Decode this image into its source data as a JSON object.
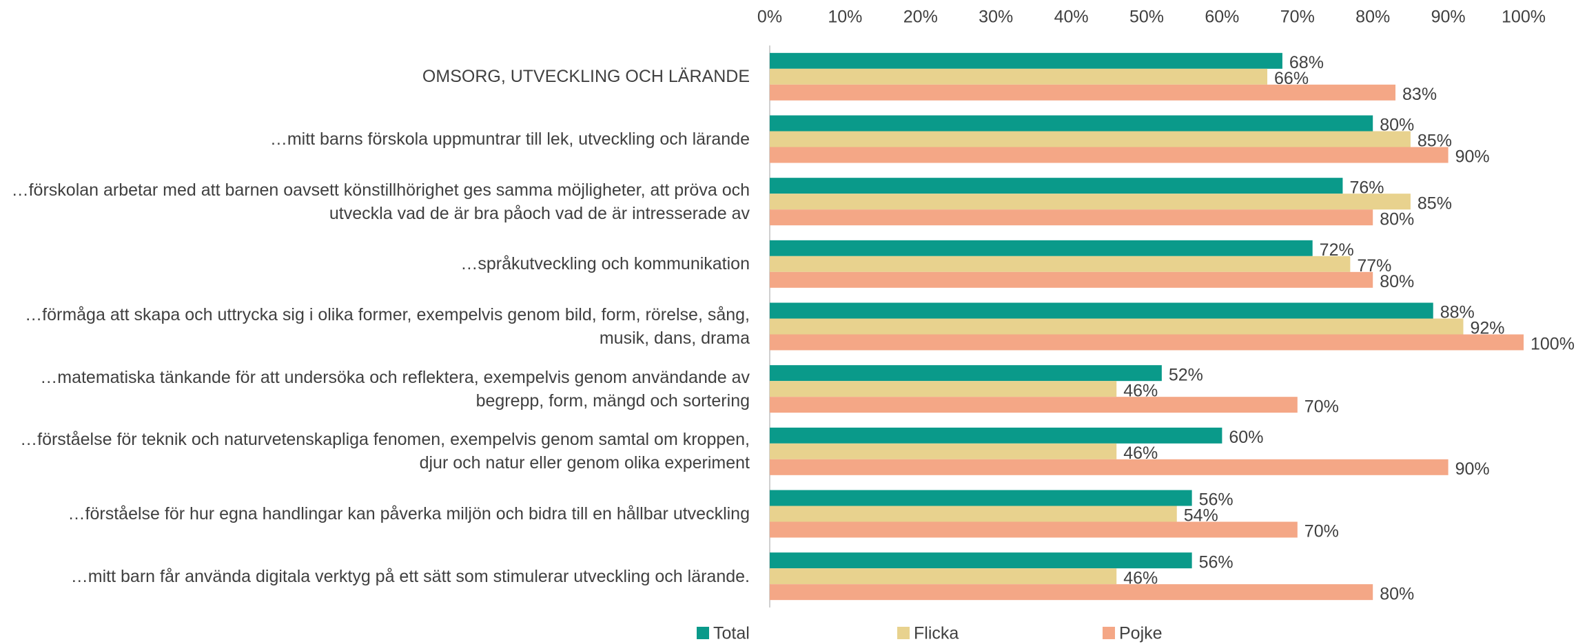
{
  "chart_data": {
    "type": "barh",
    "categories": [
      "OMSORG, UTVECKLING OCH LÄRANDE",
      "…mitt barns förskola uppmuntrar till lek, utveckling och lärande",
      "…förskolan arbetar med att barnen oavsett könstillhörighet ges samma möjligheter, att pröva och utveckla vad de är bra påoch vad de är intresserade av",
      "…språkutveckling och kommunikation",
      "…förmåga att skapa och uttrycka sig i olika former, exempelvis genom bild, form, rörelse, sång, musik, dans, drama",
      "…matematiska tänkande för att undersöka och reflektera, exempelvis genom användande av begrepp, form, mängd och sortering",
      "…förståelse för teknik och naturvetenskapliga fenomen, exempelvis genom samtal om kroppen, djur och natur eller genom olika experiment",
      "…förståelse för hur egna handlingar kan påverka miljön och bidra till en hållbar utveckling",
      "…mitt barn får använda digitala verktyg på ett sätt som stimulerar utveckling och lärande."
    ],
    "series": [
      {
        "name": "Total",
        "color": "#0a9a8a",
        "values": [
          68,
          80,
          76,
          72,
          88,
          52,
          60,
          56,
          56
        ],
        "value_labels": [
          "68%",
          "80%",
          "76%",
          "72%",
          "88%",
          "52%",
          "60%",
          "56%",
          "56%"
        ]
      },
      {
        "name": "Flicka",
        "color": "#e8d28e",
        "values": [
          66,
          85,
          85,
          77,
          92,
          46,
          46,
          54,
          46
        ],
        "value_labels": [
          "66%",
          "85%",
          "85%",
          "77%",
          "92%",
          "46%",
          "46%",
          "54%",
          "46%"
        ]
      },
      {
        "name": "Pojke",
        "color": "#f4a786",
        "values": [
          83,
          90,
          80,
          80,
          100,
          70,
          90,
          70,
          80
        ],
        "value_labels": [
          "83%",
          "90%",
          "80%",
          "80%",
          "100%",
          "70%",
          "90%",
          "70%",
          "80%"
        ]
      }
    ],
    "xlim": [
      0,
      100
    ],
    "xticks": [
      {
        "value": 0,
        "label": "0%"
      },
      {
        "value": 10,
        "label": "10%"
      },
      {
        "value": 20,
        "label": "20%"
      },
      {
        "value": 30,
        "label": "30%"
      },
      {
        "value": 40,
        "label": "40%"
      },
      {
        "value": 50,
        "label": "50%"
      },
      {
        "value": 60,
        "label": "60%"
      },
      {
        "value": 70,
        "label": "70%"
      },
      {
        "value": 80,
        "label": "80%"
      },
      {
        "value": 90,
        "label": "90%"
      },
      {
        "value": 100,
        "label": "100%"
      }
    ],
    "grid": false,
    "legend": "bottom"
  }
}
